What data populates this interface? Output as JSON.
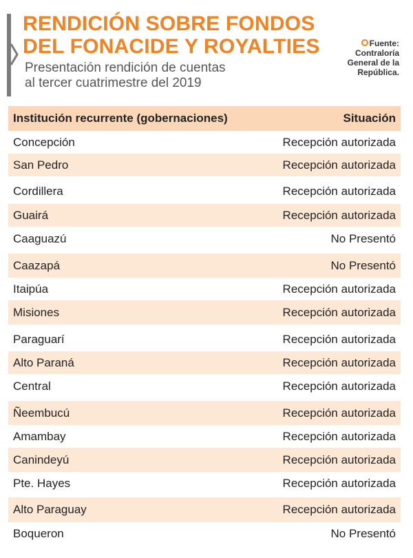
{
  "header": {
    "title_line1": "RENDICIÓN SOBRE FONDOS",
    "title_line2": "DEL FONACIDE Y ROYALTIES",
    "subtitle_line1": "Presentación rendición de cuentas",
    "subtitle_line2": "al tercer cuatrimestre del 2019"
  },
  "source": {
    "line1": "Fuente:",
    "line2": "Contraloría",
    "line3": "General de la",
    "line4": "República."
  },
  "colors": {
    "accent": "#f58220",
    "row_shade": "#fde8d6",
    "header_shade": "#fbd7b8"
  },
  "table": {
    "columns": [
      "Institución recurrente (gobernaciones)",
      "Situación"
    ],
    "rows": [
      [
        "Concepción",
        "Recepción autorizada"
      ],
      [
        "San Pedro",
        "Recepción autorizada"
      ],
      [
        "Cordillera",
        "Recepción autorizada"
      ],
      [
        "Guairá",
        "Recepción autorizada"
      ],
      [
        "Caaguazú",
        "No Presentó"
      ],
      [
        "Caazapá",
        "No Presentó"
      ],
      [
        "Itaipúa",
        "Recepción autorizada"
      ],
      [
        "Misiones",
        "Recepción autorizada"
      ],
      [
        "Paraguarí",
        "Recepción autorizada"
      ],
      [
        "Alto Paraná",
        "Recepción autorizada"
      ],
      [
        "Central",
        "Recepción autorizada"
      ],
      [
        "Ñeembucú",
        "Recepción autorizada"
      ],
      [
        "Amambay",
        "Recepción autorizada"
      ],
      [
        "Canindeyú",
        "Recepción autorizada"
      ],
      [
        "Pte. Hayes",
        "Recepción autorizada"
      ],
      [
        "Alto Paraguay",
        "Recepción autorizada"
      ],
      [
        "Boqueron",
        "No Presentó"
      ]
    ]
  }
}
